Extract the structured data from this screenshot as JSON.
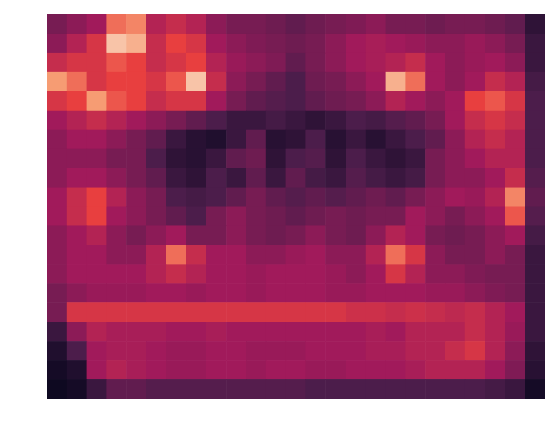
{
  "chart_data": {
    "type": "heatmap",
    "tick_labels": false,
    "color_range": [
      0,
      1
    ],
    "cells": [
      [
        0.3,
        0.35,
        0.4,
        0.7,
        0.75,
        0.45,
        0.5,
        0.45,
        0.35,
        0.3,
        0.3,
        0.28,
        0.25,
        0.28,
        0.3,
        0.32,
        0.35,
        0.3,
        0.3,
        0.28,
        0.3,
        0.3,
        0.28,
        0.25,
        0.12
      ],
      [
        0.35,
        0.45,
        0.55,
        0.9,
        0.85,
        0.5,
        0.6,
        0.55,
        0.4,
        0.35,
        0.32,
        0.3,
        0.28,
        0.3,
        0.35,
        0.4,
        0.42,
        0.4,
        0.38,
        0.35,
        0.35,
        0.38,
        0.35,
        0.3,
        0.15
      ],
      [
        0.5,
        0.55,
        0.55,
        0.65,
        0.6,
        0.5,
        0.55,
        0.6,
        0.45,
        0.38,
        0.35,
        0.32,
        0.25,
        0.3,
        0.35,
        0.4,
        0.42,
        0.45,
        0.5,
        0.4,
        0.35,
        0.38,
        0.4,
        0.35,
        0.15
      ],
      [
        0.8,
        0.7,
        0.55,
        0.6,
        0.6,
        0.55,
        0.65,
        0.9,
        0.5,
        0.35,
        0.3,
        0.25,
        0.2,
        0.28,
        0.3,
        0.35,
        0.4,
        0.85,
        0.7,
        0.4,
        0.35,
        0.4,
        0.5,
        0.45,
        0.18
      ],
      [
        0.55,
        0.6,
        0.8,
        0.65,
        0.6,
        0.5,
        0.55,
        0.55,
        0.4,
        0.3,
        0.25,
        0.22,
        0.2,
        0.25,
        0.28,
        0.3,
        0.35,
        0.45,
        0.4,
        0.35,
        0.4,
        0.6,
        0.65,
        0.55,
        0.2
      ],
      [
        0.4,
        0.45,
        0.5,
        0.45,
        0.4,
        0.35,
        0.3,
        0.25,
        0.2,
        0.15,
        0.15,
        0.18,
        0.15,
        0.12,
        0.15,
        0.2,
        0.18,
        0.22,
        0.25,
        0.3,
        0.4,
        0.5,
        0.55,
        0.5,
        0.2
      ],
      [
        0.35,
        0.4,
        0.4,
        0.35,
        0.3,
        0.25,
        0.15,
        0.1,
        0.08,
        0.15,
        0.25,
        0.1,
        0.12,
        0.2,
        0.1,
        0.15,
        0.1,
        0.15,
        0.2,
        0.25,
        0.35,
        0.45,
        0.5,
        0.45,
        0.2
      ],
      [
        0.35,
        0.35,
        0.35,
        0.3,
        0.3,
        0.2,
        0.12,
        0.1,
        0.15,
        0.25,
        0.28,
        0.12,
        0.2,
        0.22,
        0.12,
        0.2,
        0.15,
        0.12,
        0.15,
        0.3,
        0.35,
        0.4,
        0.45,
        0.45,
        0.2
      ],
      [
        0.35,
        0.4,
        0.4,
        0.35,
        0.3,
        0.25,
        0.15,
        0.12,
        0.2,
        0.15,
        0.25,
        0.15,
        0.25,
        0.18,
        0.15,
        0.22,
        0.18,
        0.15,
        0.18,
        0.3,
        0.35,
        0.35,
        0.4,
        0.5,
        0.22
      ],
      [
        0.4,
        0.5,
        0.6,
        0.45,
        0.35,
        0.3,
        0.2,
        0.18,
        0.2,
        0.25,
        0.3,
        0.25,
        0.22,
        0.25,
        0.22,
        0.25,
        0.28,
        0.25,
        0.3,
        0.35,
        0.4,
        0.38,
        0.45,
        0.75,
        0.25
      ],
      [
        0.4,
        0.5,
        0.6,
        0.4,
        0.35,
        0.3,
        0.25,
        0.2,
        0.3,
        0.35,
        0.3,
        0.28,
        0.25,
        0.28,
        0.3,
        0.28,
        0.3,
        0.3,
        0.4,
        0.35,
        0.3,
        0.35,
        0.4,
        0.65,
        0.22
      ],
      [
        0.35,
        0.4,
        0.45,
        0.35,
        0.3,
        0.35,
        0.4,
        0.3,
        0.3,
        0.35,
        0.3,
        0.28,
        0.3,
        0.35,
        0.3,
        0.28,
        0.35,
        0.45,
        0.4,
        0.3,
        0.28,
        0.3,
        0.35,
        0.4,
        0.18
      ],
      [
        0.35,
        0.4,
        0.4,
        0.35,
        0.35,
        0.45,
        0.7,
        0.5,
        0.4,
        0.4,
        0.35,
        0.35,
        0.38,
        0.4,
        0.35,
        0.35,
        0.45,
        0.7,
        0.55,
        0.35,
        0.3,
        0.3,
        0.35,
        0.3,
        0.15
      ],
      [
        0.35,
        0.4,
        0.4,
        0.4,
        0.4,
        0.45,
        0.5,
        0.45,
        0.4,
        0.4,
        0.38,
        0.4,
        0.4,
        0.4,
        0.38,
        0.35,
        0.4,
        0.55,
        0.45,
        0.35,
        0.35,
        0.32,
        0.3,
        0.3,
        0.15
      ],
      [
        0.3,
        0.35,
        0.38,
        0.38,
        0.38,
        0.4,
        0.4,
        0.38,
        0.4,
        0.4,
        0.38,
        0.4,
        0.4,
        0.4,
        0.38,
        0.38,
        0.4,
        0.4,
        0.4,
        0.38,
        0.38,
        0.35,
        0.32,
        0.3,
        0.15
      ],
      [
        0.3,
        0.55,
        0.55,
        0.55,
        0.55,
        0.55,
        0.55,
        0.55,
        0.55,
        0.55,
        0.55,
        0.55,
        0.55,
        0.55,
        0.55,
        0.52,
        0.52,
        0.5,
        0.52,
        0.5,
        0.48,
        0.5,
        0.45,
        0.4,
        0.15
      ],
      [
        0.15,
        0.35,
        0.45,
        0.42,
        0.42,
        0.42,
        0.4,
        0.4,
        0.42,
        0.4,
        0.4,
        0.4,
        0.4,
        0.4,
        0.4,
        0.4,
        0.42,
        0.4,
        0.45,
        0.45,
        0.45,
        0.5,
        0.45,
        0.38,
        0.15
      ],
      [
        0.08,
        0.2,
        0.4,
        0.42,
        0.42,
        0.4,
        0.38,
        0.38,
        0.4,
        0.4,
        0.38,
        0.38,
        0.38,
        0.4,
        0.4,
        0.4,
        0.42,
        0.42,
        0.45,
        0.45,
        0.5,
        0.55,
        0.45,
        0.35,
        0.12
      ],
      [
        0.05,
        0.08,
        0.4,
        0.45,
        0.42,
        0.4,
        0.38,
        0.38,
        0.4,
        0.4,
        0.38,
        0.4,
        0.4,
        0.38,
        0.38,
        0.4,
        0.4,
        0.4,
        0.42,
        0.45,
        0.45,
        0.45,
        0.4,
        0.32,
        0.1
      ],
      [
        0.03,
        0.05,
        0.15,
        0.25,
        0.25,
        0.22,
        0.22,
        0.22,
        0.22,
        0.22,
        0.22,
        0.22,
        0.22,
        0.2,
        0.2,
        0.2,
        0.2,
        0.2,
        0.2,
        0.2,
        0.2,
        0.2,
        0.18,
        0.15,
        0.05
      ]
    ]
  }
}
